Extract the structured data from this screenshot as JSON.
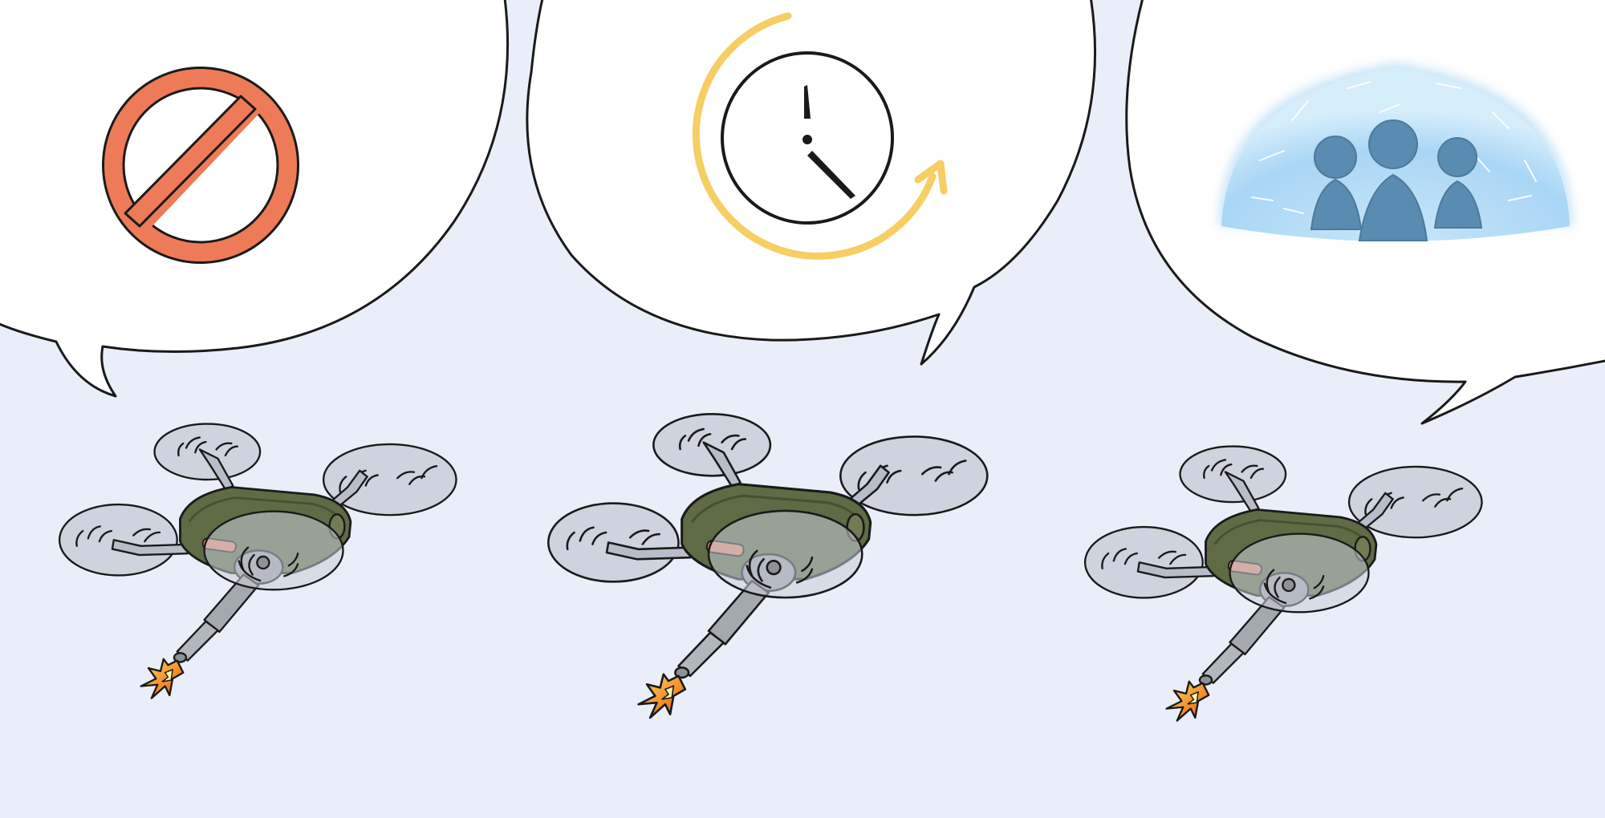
{
  "scene": {
    "background_color": "#E9EEF9",
    "outline_color": "#1A1A1A",
    "bubble_fill": "#FFFFFF"
  },
  "bubbles": [
    {
      "icon": "no-entry-sign-icon",
      "color": "#EE7B57"
    },
    {
      "icon": "clock-refresh-icon",
      "color": "#F6CE63"
    },
    {
      "icon": "shielded-people-icon",
      "color": "#5A8BB0"
    }
  ],
  "drones": [
    {
      "icon": "drone-icon",
      "body_color": "#5E6B44",
      "rotor_color": "#C9CED8"
    },
    {
      "icon": "drone-icon",
      "body_color": "#5E6B44",
      "rotor_color": "#C9CED8"
    },
    {
      "icon": "drone-icon",
      "body_color": "#5E6B44",
      "rotor_color": "#C9CED8"
    }
  ]
}
